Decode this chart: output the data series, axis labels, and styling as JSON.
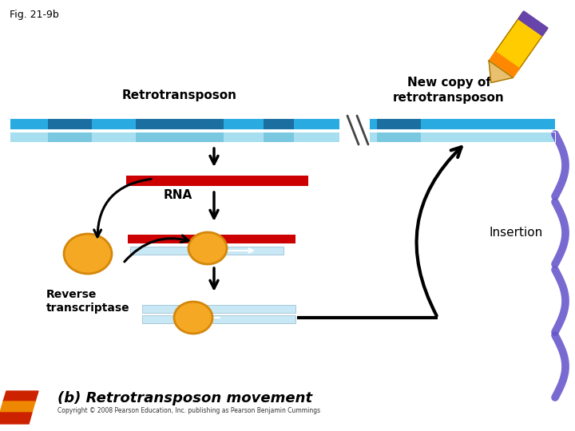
{
  "fig_label": "Fig. 21-9b",
  "label_retrotransposon": "Retrotransposon",
  "label_new_copy": "New copy of\nretrotransposon",
  "label_rna": "RNA",
  "label_insertion": "Insertion",
  "label_reverse": "Reverse\ntranscriptase",
  "subtitle": "(b) Retrotransposon movement",
  "copyright": "Copyright © 2008 Pearson Education, Inc. publishing as Pearson Benjamin Cummings",
  "bg_color": "#ffffff",
  "chrom_main": "#29abe2",
  "chrom_dark": "#1a6fa0",
  "chrom_lower": "#a8dff0",
  "chrom_lower_seg": "#7ac8e0",
  "rna_color": "#cc0000",
  "dna_color": "#c8e8f5",
  "dna_edge": "#90b8cc",
  "enzyme_fill": "#f5a824",
  "enzyme_edge": "#d4870a",
  "arrow_color": "#000000",
  "purple_deco": "#6655cc",
  "pencil_yellow": "#ffcc00",
  "pencil_orange": "#ff8800",
  "pencil_purple": "#6644aa",
  "pencil_brown": "#aa7700"
}
